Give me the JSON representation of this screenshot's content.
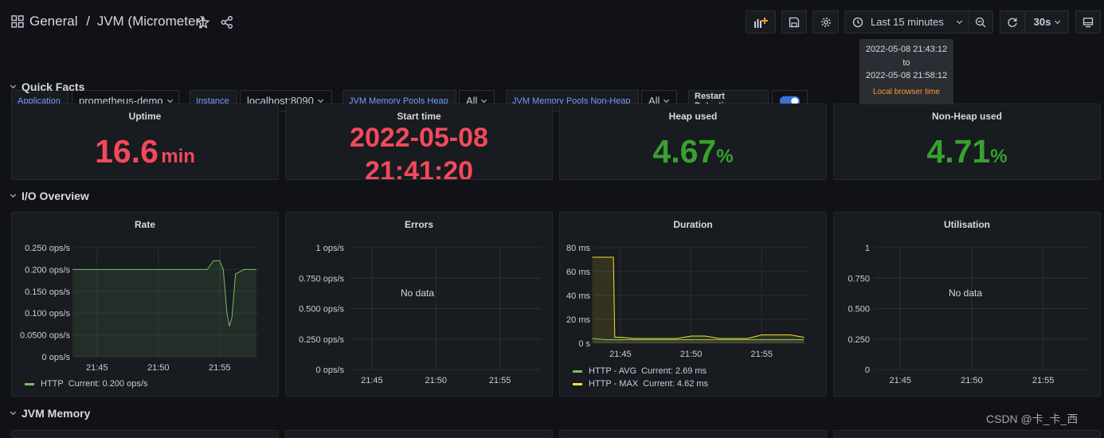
{
  "header": {
    "breadcrumb_folder": "General",
    "breadcrumb_sep": "/",
    "dashboard_title": "JVM (Micrometer)",
    "time_range_label": "Last 15 minutes",
    "refresh_interval": "30s"
  },
  "time_tooltip": {
    "from": "2022-05-08 21:43:12",
    "to_word": "to",
    "to": "2022-05-08 21:58:12",
    "zone": "Local browser time"
  },
  "variables": [
    {
      "label": "Application",
      "value": "prometheus-demo"
    },
    {
      "label": "Instance",
      "value": "localhost:8090"
    },
    {
      "label": "JVM Memory Pools Heap",
      "value": "All"
    },
    {
      "label": "JVM Memory Pools Non-Heap",
      "value": "All"
    },
    {
      "label": "Restart Detection",
      "toggle_on": true
    }
  ],
  "rows": {
    "quick_facts": "Quick Facts",
    "io_overview": "I/O Overview",
    "jvm_memory": "JVM Memory"
  },
  "stats": {
    "uptime": {
      "title": "Uptime",
      "value": "16.6",
      "unit": "min",
      "color": "#f2495c"
    },
    "start_time": {
      "title": "Start time",
      "line1": "2022-05-08",
      "line2": "21:41:20",
      "color": "#f2495c"
    },
    "heap_used": {
      "title": "Heap used",
      "value": "4.67",
      "unit": "%",
      "color": "#37a22e"
    },
    "nonheap_used": {
      "title": "Non-Heap used",
      "value": "4.71",
      "unit": "%",
      "color": "#37a22e"
    }
  },
  "panels": {
    "rate": {
      "title": "Rate"
    },
    "errors": {
      "title": "Errors",
      "no_data": "No data"
    },
    "duration": {
      "title": "Duration"
    },
    "utilisation": {
      "title": "Utilisation",
      "no_data": "No data"
    }
  },
  "chart_data": [
    {
      "type": "area",
      "title": "Rate",
      "x": [
        "21:43",
        "21:44",
        "21:45",
        "21:46",
        "21:47",
        "21:48",
        "21:49",
        "21:50",
        "21:51",
        "21:52",
        "21:53",
        "21:54",
        "21:54.5",
        "21:55",
        "21:55.3",
        "21:55.6",
        "21:55.8",
        "21:56",
        "21:56.3",
        "21:57",
        "21:58"
      ],
      "x_ticks": [
        "21:45",
        "21:50",
        "21:55"
      ],
      "y_ticks": [
        "0 ops/s",
        "0.0500 ops/s",
        "0.100 ops/s",
        "0.150 ops/s",
        "0.200 ops/s",
        "0.250 ops/s"
      ],
      "ylim": [
        0,
        0.25
      ],
      "series": [
        {
          "name": "HTTP",
          "current": "Current: 0.200 ops/s",
          "color": "#73bf69",
          "values": [
            0.2,
            0.2,
            0.2,
            0.2,
            0.2,
            0.2,
            0.2,
            0.2,
            0.2,
            0.2,
            0.2,
            0.2,
            0.22,
            0.22,
            0.2,
            0.1,
            0.07,
            0.09,
            0.19,
            0.2,
            0.2
          ]
        }
      ]
    },
    {
      "type": "line",
      "title": "Errors",
      "x_ticks": [
        "21:45",
        "21:50",
        "21:55"
      ],
      "y_ticks": [
        "0 ops/s",
        "0.250 ops/s",
        "0.500 ops/s",
        "0.750 ops/s",
        "1 ops/s"
      ],
      "ylim": [
        0,
        1
      ],
      "series": []
    },
    {
      "type": "area",
      "title": "Duration",
      "x": [
        "21:43",
        "21:44",
        "21:44.5",
        "21:44.6",
        "21:45",
        "21:46",
        "21:47",
        "21:48",
        "21:49",
        "21:50",
        "21:51",
        "21:52",
        "21:53",
        "21:54",
        "21:55",
        "21:56",
        "21:57",
        "21:58"
      ],
      "x_ticks": [
        "21:45",
        "21:50",
        "21:55"
      ],
      "y_ticks": [
        "0 s",
        "20 ms",
        "40 ms",
        "60 ms",
        "80 ms"
      ],
      "ylim": [
        0,
        80
      ],
      "series": [
        {
          "name": "HTTP - AVG",
          "current": "Current: 2.69 ms",
          "color": "#73bf69",
          "values": [
            4,
            3,
            3,
            3,
            3,
            3,
            3,
            3,
            3,
            3,
            3,
            3,
            3,
            3,
            3,
            3,
            3,
            3
          ]
        },
        {
          "name": "HTTP - MAX",
          "current": "Current: 4.62 ms",
          "color": "#fade2a",
          "values": [
            72,
            72,
            72,
            5,
            5,
            4,
            4,
            4,
            4,
            6,
            6,
            4,
            4,
            4,
            7,
            7,
            7,
            5
          ]
        }
      ]
    },
    {
      "type": "line",
      "title": "Utilisation",
      "x_ticks": [
        "21:45",
        "21:50",
        "21:55"
      ],
      "y_ticks": [
        "0",
        "0.250",
        "0.500",
        "0.750",
        "1"
      ],
      "ylim": [
        0,
        1
      ],
      "series": []
    }
  ],
  "watermark": "CSDN @卡_卡_西"
}
